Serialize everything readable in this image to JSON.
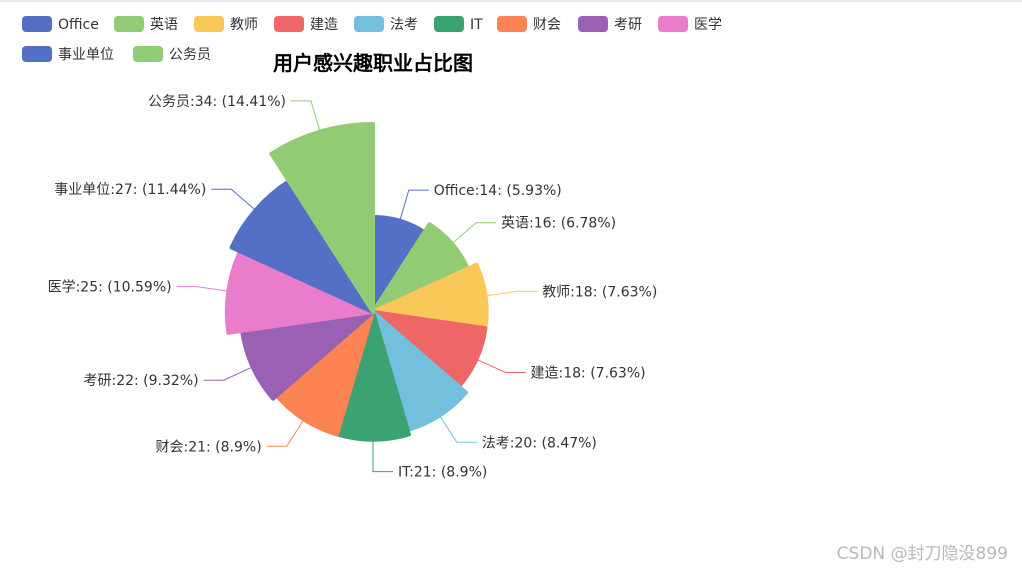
{
  "chart_data": {
    "type": "pie",
    "subtype": "rose",
    "title": "用户感兴趣职业占比图",
    "legend_position": "top-left",
    "categories": [
      "Office",
      "英语",
      "教师",
      "建造",
      "法考",
      "IT",
      "财会",
      "考研",
      "医学",
      "事业单位",
      "公务员"
    ],
    "values": [
      14,
      16,
      18,
      18,
      20,
      21,
      21,
      22,
      25,
      27,
      34
    ],
    "labels": [
      "Office:14: (5.93%)",
      "英语:16: (6.78%)",
      "教师:18: (7.63%)",
      "建造:18: (7.63%)",
      "法考:20: (8.47%)",
      "IT:21: (8.9%)",
      "财会:21: (8.9%)",
      "考研:22: (9.32%)",
      "医学:25: (10.59%)",
      "事业单位:27: (11.44%)",
      "公务员:34: (14.41%)"
    ],
    "colors": [
      "#5470c6",
      "#91cc75",
      "#fac858",
      "#ee6666",
      "#73c0de",
      "#3ba272",
      "#fc8452",
      "#9a60b4",
      "#ea7ccc",
      "#5470c6",
      "#91cc75"
    ]
  },
  "watermark": "CSDN @封刀隐没899"
}
